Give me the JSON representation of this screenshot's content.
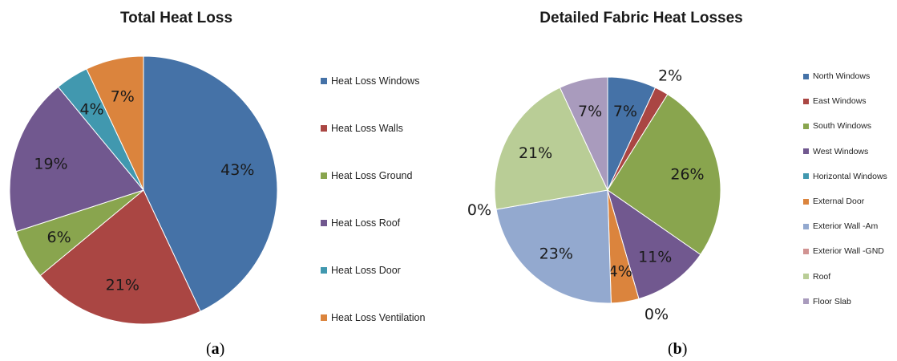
{
  "chart_data": [
    {
      "type": "pie",
      "title": "Total Heat Loss",
      "panel_label": "a",
      "legend_position": "right",
      "slices": [
        {
          "name": "Heat Loss Windows",
          "value": 43,
          "label": "43%",
          "color": "#4572A7"
        },
        {
          "name": "Heat Loss Walls",
          "value": 21,
          "label": "21%",
          "color": "#AA4643"
        },
        {
          "name": "Heat Loss Ground",
          "value": 6,
          "label": "6%",
          "color": "#89A54E"
        },
        {
          "name": "Heat Loss Roof",
          "value": 19,
          "label": "19%",
          "color": "#71588F"
        },
        {
          "name": "Heat Loss Door",
          "value": 4,
          "label": "4%",
          "color": "#4198AF"
        },
        {
          "name": "Heat Loss Ventilation",
          "value": 7,
          "label": "7%",
          "color": "#DB843D"
        }
      ]
    },
    {
      "type": "pie",
      "title": "Detailed Fabric Heat Losses",
      "panel_label": "b",
      "legend_position": "right",
      "slices": [
        {
          "name": "North Windows",
          "value": 7,
          "label": "7%",
          "color": "#4572A7"
        },
        {
          "name": "East Windows",
          "value": 2,
          "label": "2%",
          "color": "#AA4643"
        },
        {
          "name": "South Windows",
          "value": 26,
          "label": "26%",
          "color": "#89A54E"
        },
        {
          "name": "West Windows",
          "value": 11,
          "label": "11%",
          "color": "#71588F"
        },
        {
          "name": "Horizontal Windows",
          "value": 0,
          "label": "0%",
          "color": "#4198AF"
        },
        {
          "name": "External Door",
          "value": 4,
          "label": "4%",
          "color": "#DB843D"
        },
        {
          "name": "Exterior Wall -Am",
          "value": 23,
          "label": "23%",
          "color": "#93A9CF"
        },
        {
          "name": "Exterior Wall -GND",
          "value": 0,
          "label": "0%",
          "color": "#D19392"
        },
        {
          "name": "Roof",
          "value": 21,
          "label": "21%",
          "color": "#B9CD96"
        },
        {
          "name": "Floor Slab",
          "value": 7,
          "label": "7%",
          "color": "#A99BBD"
        }
      ]
    }
  ]
}
